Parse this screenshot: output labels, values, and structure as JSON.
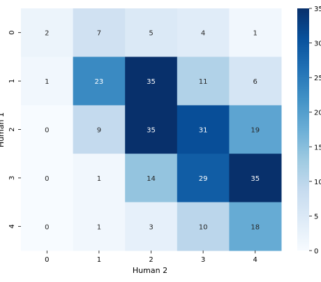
{
  "chart_data": {
    "type": "heatmap",
    "xlabel": "Human 2",
    "ylabel": "Human 1",
    "x_categories": [
      "0",
      "1",
      "2",
      "3",
      "4"
    ],
    "y_categories": [
      "0",
      "1",
      "2",
      "3",
      "4"
    ],
    "values": [
      [
        2,
        7,
        5,
        4,
        1
      ],
      [
        1,
        23,
        35,
        11,
        6
      ],
      [
        0,
        9,
        35,
        31,
        19
      ],
      [
        0,
        1,
        14,
        29,
        35
      ],
      [
        0,
        1,
        3,
        10,
        18
      ]
    ],
    "colorbar": {
      "min": 0,
      "max": 35,
      "ticks": [
        "0",
        "5",
        "10",
        "15",
        "20",
        "25",
        "30",
        "35"
      ],
      "colormap": "Blues"
    }
  }
}
